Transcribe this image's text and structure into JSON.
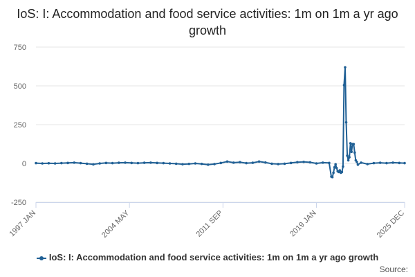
{
  "title": "IoS: I: Accommodation and food service activities: 1m on 1m a yr ago growth",
  "source_label": "Source:",
  "colors": {
    "series": "#206095",
    "grid": "#e6e6e6",
    "axis": "#ccd6eb",
    "text": "#666666"
  },
  "chart_data": {
    "type": "line",
    "title": "IoS: I: Accommodation and food service activities: 1m on 1m a yr ago growth",
    "xlabel": "",
    "ylabel": "",
    "ylim": [
      -250,
      750
    ],
    "yticks": [
      -250,
      0,
      250,
      500,
      750
    ],
    "x_tick_labels": [
      "1997 JAN",
      "2004 MAY",
      "2011 SEP",
      "2019 JAN",
      "2025 DEC"
    ],
    "x_range": [
      "1997 JAN",
      "2025 DEC"
    ],
    "grid": true,
    "legend": "bottom",
    "series": [
      {
        "name": "IoS: I: Accommodation and food service activities: 1m on 1m a yr ago growth",
        "points": [
          [
            "1997 JAN",
            2
          ],
          [
            "1997 JUL",
            0
          ],
          [
            "1998 JAN",
            1
          ],
          [
            "1998 JUL",
            0
          ],
          [
            "1999 JAN",
            2
          ],
          [
            "1999 JUL",
            3
          ],
          [
            "2000 JAN",
            5
          ],
          [
            "2000 JUL",
            2
          ],
          [
            "2001 JAN",
            -2
          ],
          [
            "2001 JUL",
            -6
          ],
          [
            "2002 JAN",
            0
          ],
          [
            "2002 JUL",
            3
          ],
          [
            "2003 JAN",
            2
          ],
          [
            "2003 JUL",
            4
          ],
          [
            "2004 JAN",
            5
          ],
          [
            "2004 JUL",
            3
          ],
          [
            "2005 JAN",
            2
          ],
          [
            "2005 JUL",
            4
          ],
          [
            "2006 JAN",
            5
          ],
          [
            "2006 JUL",
            3
          ],
          [
            "2007 JAN",
            2
          ],
          [
            "2007 JUL",
            0
          ],
          [
            "2008 JAN",
            -2
          ],
          [
            "2008 JUL",
            -5
          ],
          [
            "2009 JAN",
            -3
          ],
          [
            "2009 JUL",
            0
          ],
          [
            "2010 JAN",
            -3
          ],
          [
            "2010 JUL",
            -8
          ],
          [
            "2011 JAN",
            -4
          ],
          [
            "2011 JUL",
            3
          ],
          [
            "2012 JAN",
            12
          ],
          [
            "2012 JUL",
            5
          ],
          [
            "2013 JAN",
            8
          ],
          [
            "2013 JUL",
            2
          ],
          [
            "2014 JAN",
            4
          ],
          [
            "2014 JUL",
            12
          ],
          [
            "2015 JAN",
            6
          ],
          [
            "2015 JUL",
            -2
          ],
          [
            "2016 JAN",
            -4
          ],
          [
            "2016 JUL",
            -2
          ],
          [
            "2017 JAN",
            3
          ],
          [
            "2017 JUL",
            8
          ],
          [
            "2018 JAN",
            10
          ],
          [
            "2018 JUL",
            7
          ],
          [
            "2019 JAN",
            0
          ],
          [
            "2019 JUL",
            5
          ],
          [
            "2020 JAN",
            3
          ],
          [
            "2020 MAR",
            -85
          ],
          [
            "2020 APR",
            -88
          ],
          [
            "2020 MAY",
            -60
          ],
          [
            "2020 JUN",
            -25
          ],
          [
            "2020 JUL",
            -5
          ],
          [
            "2020 AUG",
            -30
          ],
          [
            "2020 SEP",
            -50
          ],
          [
            "2020 OCT",
            -55
          ],
          [
            "2020 NOV",
            -45
          ],
          [
            "2020 DEC",
            -60
          ],
          [
            "2021 JAN",
            -55
          ],
          [
            "2021 FEB",
            -20
          ],
          [
            "2021 MAR",
            505
          ],
          [
            "2021 APR",
            620
          ],
          [
            "2021 MAY",
            265
          ],
          [
            "2021 JUN",
            50
          ],
          [
            "2021 JUL",
            20
          ],
          [
            "2021 AUG",
            40
          ],
          [
            "2021 SEP",
            130
          ],
          [
            "2021 OCT",
            75
          ],
          [
            "2021 NOV",
            125
          ],
          [
            "2021 DEC",
            125
          ],
          [
            "2022 JAN",
            70
          ],
          [
            "2022 FEB",
            20
          ],
          [
            "2022 MAR",
            10
          ],
          [
            "2022 APR",
            -8
          ],
          [
            "2022 JUL",
            5
          ],
          [
            "2023 JAN",
            -4
          ],
          [
            "2023 JUL",
            2
          ],
          [
            "2024 JAN",
            4
          ],
          [
            "2024 JUL",
            2
          ],
          [
            "2025 JAN",
            5
          ],
          [
            "2025 JUL",
            3
          ],
          [
            "2025 DEC",
            2
          ]
        ]
      }
    ]
  }
}
